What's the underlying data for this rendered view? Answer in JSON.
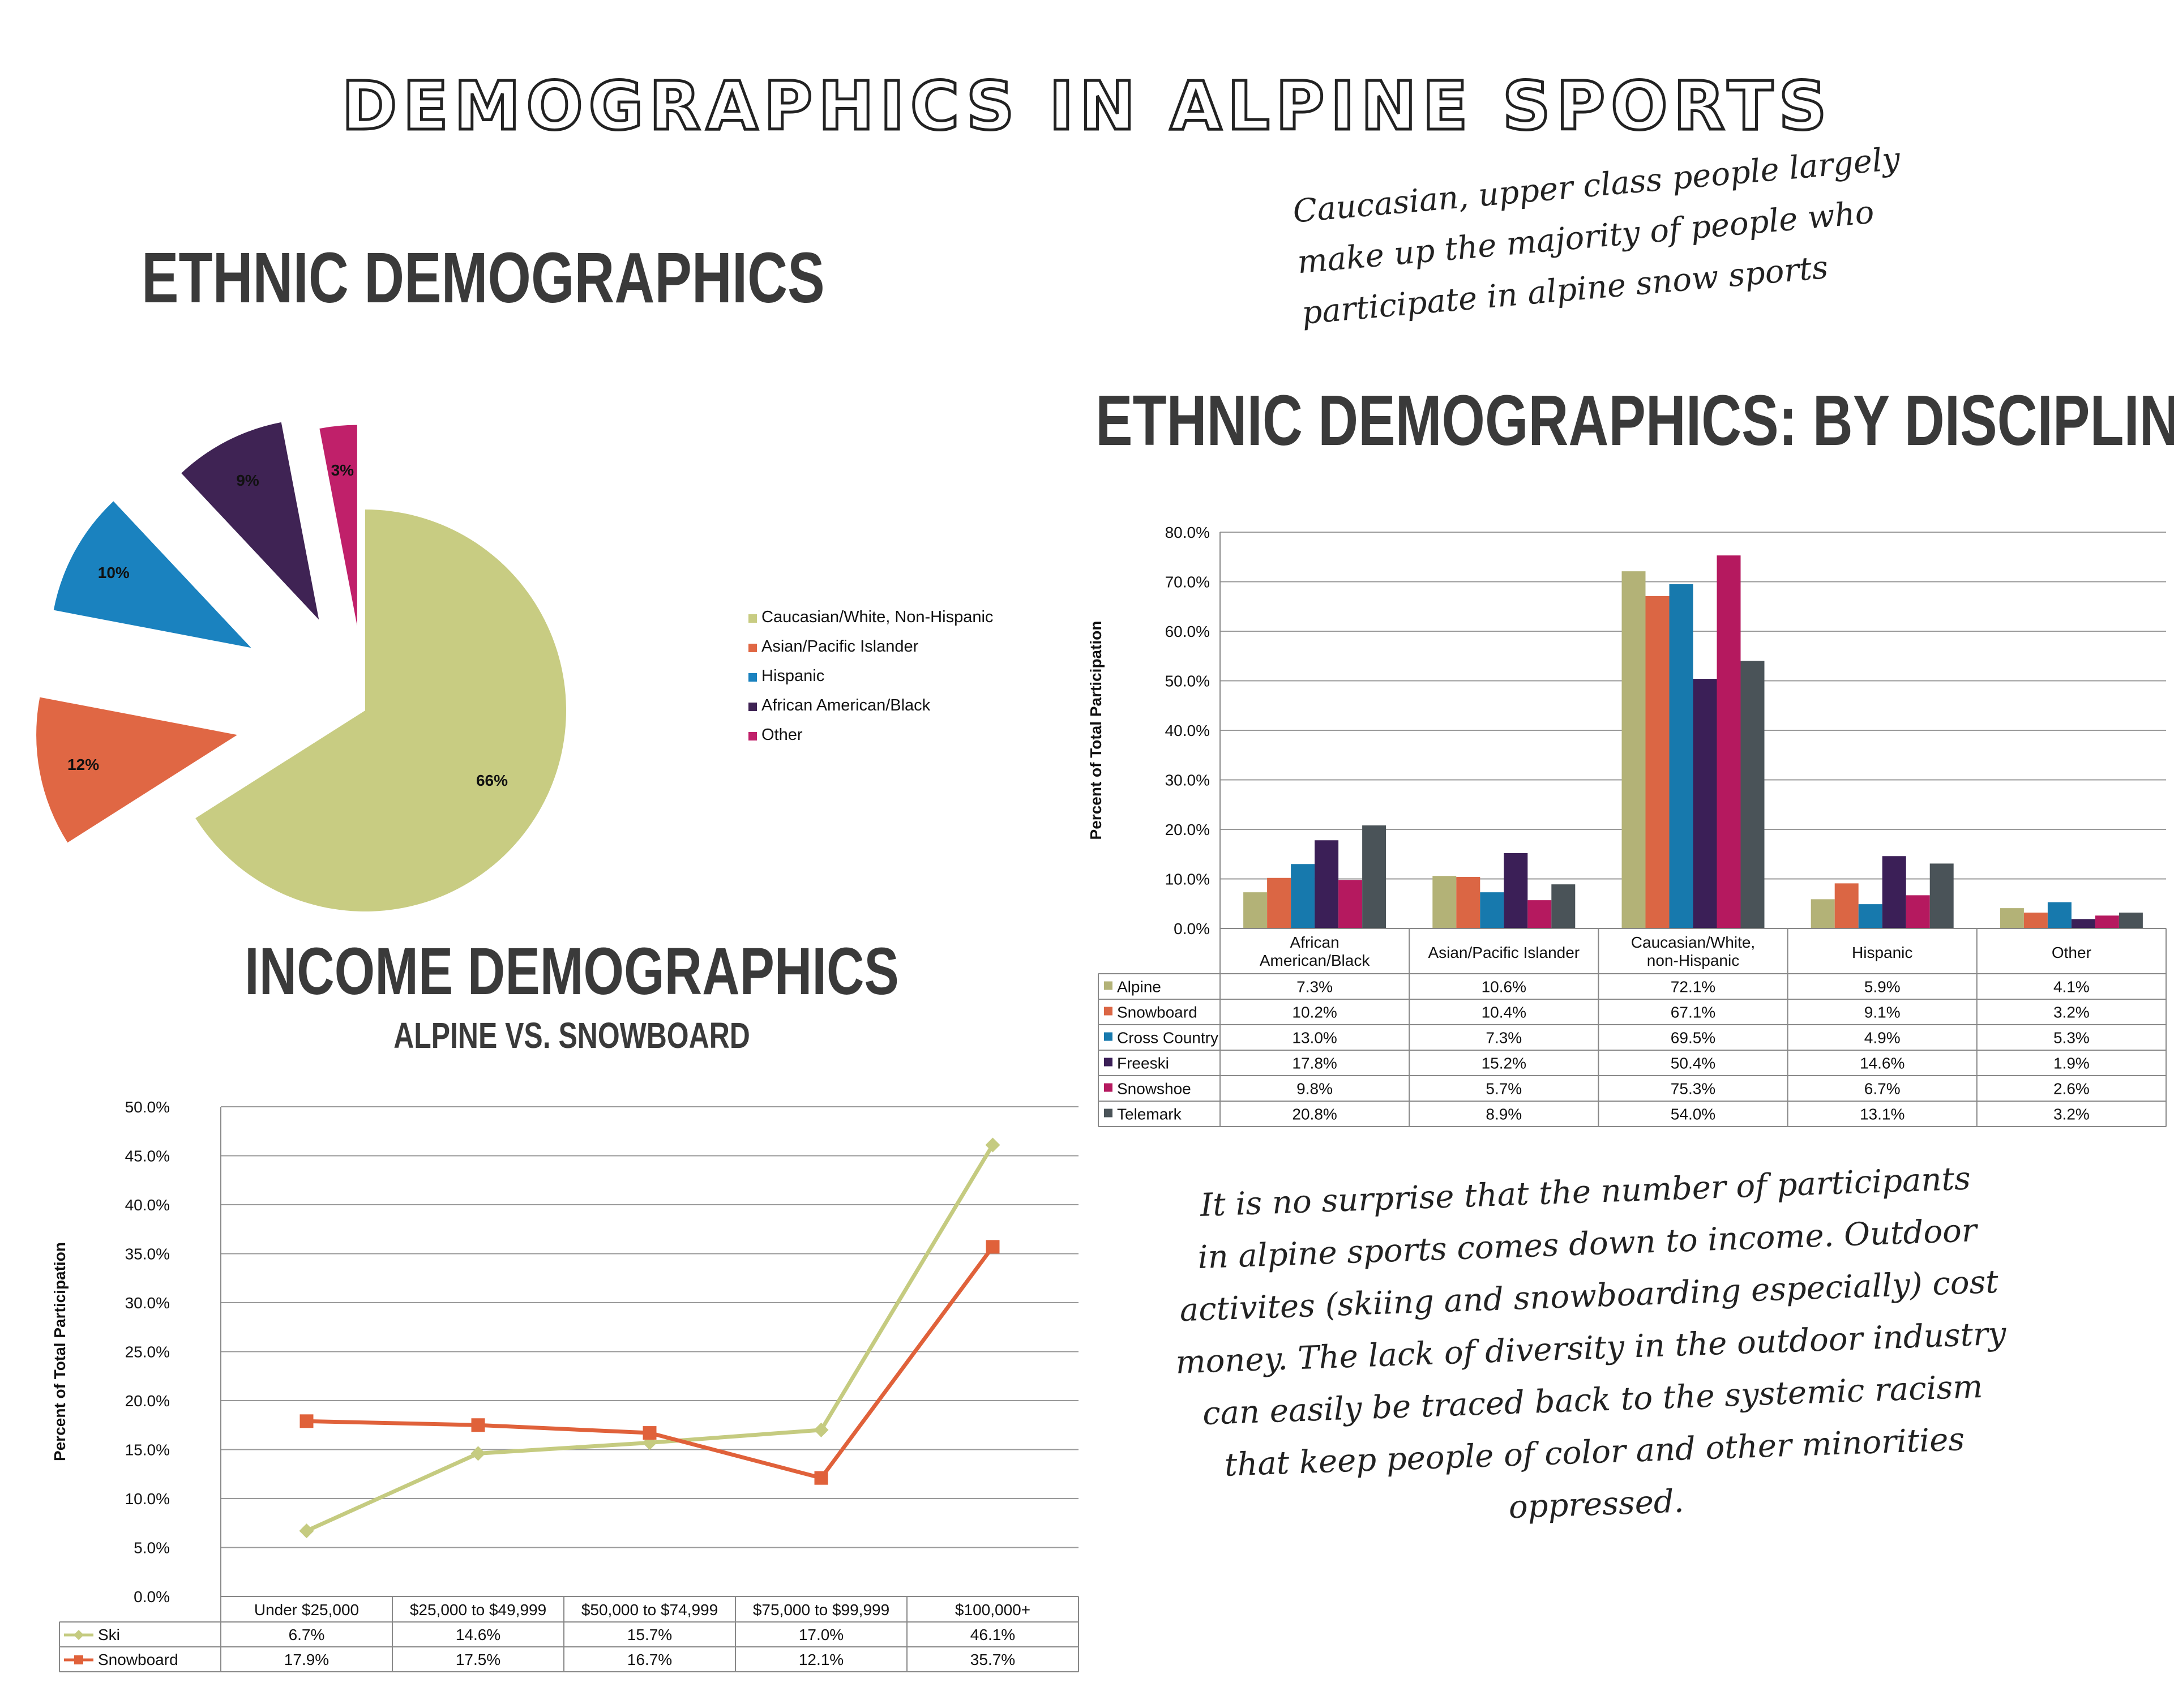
{
  "page": {
    "title": "DEMOGRAPHICS IN ALPINE SPORTS",
    "ethnic_title": "ETHNIC DEMOGRAPHICS",
    "discipline_title": "ETHNIC DEMOGRAPHICS: BY DISCIPLINE",
    "income_title": "INCOME DEMOGRAPHICS",
    "income_subtitle": "ALPINE VS. SNOWBOARD",
    "note_top": [
      "Caucasian, upper class people largely",
      "make up the majority of people who",
      "participate in alpine snow sports"
    ],
    "note_bottom": [
      "It is no surprise that the number of participants",
      "in alpine sports comes down to income. Outdoor",
      "activites (skiing and snowboarding especially) cost",
      "money. The lack of diversity in the outdoor industry",
      "can easily be traced back to the systemic racism",
      "that keep people of color and other minorities",
      "oppressed."
    ]
  },
  "chart_data": [
    {
      "type": "pie",
      "labels": [
        "Caucasian/White, Non-Hispanic",
        "Asian/Pacific Islander",
        "Hispanic",
        "African American/Black",
        "Other"
      ],
      "values": [
        66,
        12,
        10,
        9,
        3
      ],
      "value_labels": [
        "66%",
        "12%",
        "10%",
        "9%",
        "3%"
      ],
      "colors": [
        "#c8cc82",
        "#e06744",
        "#1a82bf",
        "#3f2354",
        "#c0206a"
      ],
      "legend": "right",
      "exploded": true
    },
    {
      "type": "bar",
      "ylabel": "Percent of Total Participation",
      "ylim": [
        0,
        80
      ],
      "yticks": [
        "0.0%",
        "10.0%",
        "20.0%",
        "30.0%",
        "40.0%",
        "50.0%",
        "60.0%",
        "70.0%",
        "80.0%"
      ],
      "categories": [
        "African American/Black",
        "Asian/Pacific Islander",
        "Caucasian/White, non-Hispanic",
        "Hispanic",
        "Other"
      ],
      "category_lines": [
        [
          "African",
          "American/Black"
        ],
        [
          "Asian/Pacific Islander"
        ],
        [
          "Caucasian/White,",
          "non-Hispanic"
        ],
        [
          "Hispanic"
        ],
        [
          "Other"
        ]
      ],
      "grid": true,
      "legend": "data table",
      "series": [
        {
          "name": "Alpine",
          "color": "#b3b277",
          "values": [
            7.3,
            10.6,
            72.1,
            5.9,
            4.1
          ],
          "labels": [
            "7.3%",
            "10.6%",
            "72.1%",
            "5.9%",
            "4.1%"
          ]
        },
        {
          "name": "Snowboard",
          "color": "#db6644",
          "values": [
            10.2,
            10.4,
            67.1,
            9.1,
            3.2
          ],
          "labels": [
            "10.2%",
            "10.4%",
            "67.1%",
            "9.1%",
            "3.2%"
          ]
        },
        {
          "name": "Cross Country",
          "color": "#1779ad",
          "values": [
            13.0,
            7.3,
            69.5,
            4.9,
            5.3
          ],
          "labels": [
            "13.0%",
            "7.3%",
            "69.5%",
            "4.9%",
            "5.3%"
          ]
        },
        {
          "name": "Freeski",
          "color": "#3b1f57",
          "values": [
            17.8,
            15.2,
            50.4,
            14.6,
            1.9
          ],
          "labels": [
            "17.8%",
            "15.2%",
            "50.4%",
            "14.6%",
            "1.9%"
          ]
        },
        {
          "name": "Snowshoe",
          "color": "#b5195f",
          "values": [
            9.8,
            5.7,
            75.3,
            6.7,
            2.6
          ],
          "labels": [
            "9.8%",
            "5.7%",
            "75.3%",
            "6.7%",
            "2.6%"
          ]
        },
        {
          "name": "Telemark",
          "color": "#4a5358",
          "values": [
            20.8,
            8.9,
            54.0,
            13.1,
            3.2
          ],
          "labels": [
            "20.8%",
            "8.9%",
            "54.0%",
            "13.1%",
            "3.2%"
          ]
        }
      ]
    },
    {
      "type": "line",
      "ylabel": "Percent of Total Participation",
      "ylim": [
        0,
        50
      ],
      "yticks": [
        "0.0%",
        "5.0%",
        "10.0%",
        "15.0%",
        "20.0%",
        "25.0%",
        "30.0%",
        "35.0%",
        "40.0%",
        "45.0%",
        "50.0%"
      ],
      "categories": [
        "Under $25,000",
        "$25,000 to $49,999",
        "$50,000 to $74,999",
        "$75,000 to $99,999",
        "$100,000+"
      ],
      "grid": true,
      "legend": "data table",
      "series": [
        {
          "name": "Ski",
          "color": "#c5cb80",
          "marker": "diamond",
          "values": [
            6.7,
            14.6,
            15.7,
            17.0,
            46.1
          ],
          "labels": [
            "6.7%",
            "14.6%",
            "15.7%",
            "17.0%",
            "46.1%"
          ]
        },
        {
          "name": "Snowboard",
          "color": "#e0613a",
          "marker": "square",
          "values": [
            17.9,
            17.5,
            16.7,
            12.1,
            35.7
          ],
          "labels": [
            "17.9%",
            "17.5%",
            "16.7%",
            "12.1%",
            "35.7%"
          ]
        }
      ]
    }
  ]
}
